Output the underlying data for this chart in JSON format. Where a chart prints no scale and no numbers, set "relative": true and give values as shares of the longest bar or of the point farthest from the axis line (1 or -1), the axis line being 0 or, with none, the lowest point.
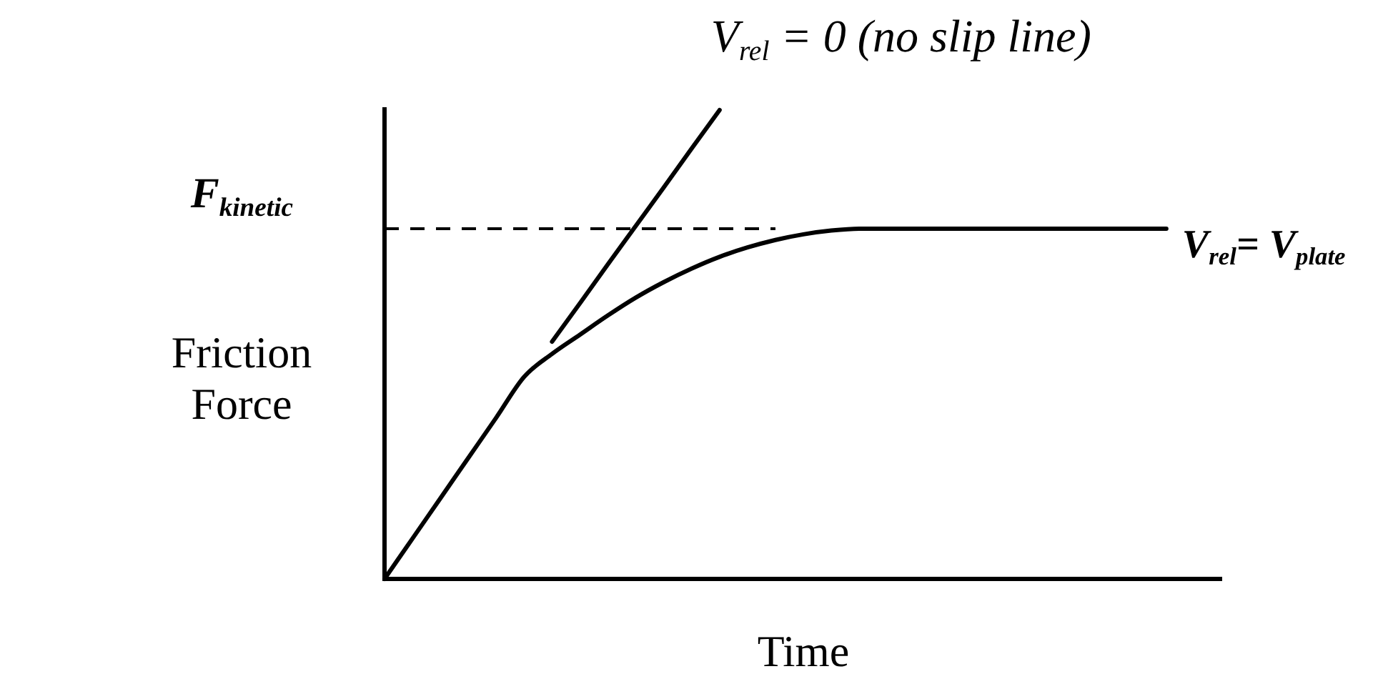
{
  "chart_data": {
    "type": "line",
    "relative": true,
    "xlabel": "Time",
    "ylabel": "Friction Force",
    "categories": [
      null,
      null,
      null,
      null,
      null,
      null,
      null,
      null,
      null,
      null,
      null,
      null,
      null,
      null,
      null,
      null,
      null,
      null,
      null,
      null,
      null,
      null,
      null,
      null,
      null,
      null,
      null,
      null,
      null,
      null,
      null
    ],
    "series": [
      {
        "name": "V$_{rel}$= V$_{plate}$",
        "color": "#000000",
        "values": [
          0,
          0.086,
          0.172,
          0.258,
          0.344,
          0.431,
          0.48,
          0.521,
          0.562,
          0.6,
          0.633,
          0.662,
          0.687,
          0.707,
          0.723,
          0.735,
          0.743,
          0.747,
          0.747,
          0.747,
          0.747,
          0.747,
          0.747,
          0.747,
          0.747,
          0.747,
          0.747,
          0.747,
          0.747,
          null,
          null
        ]
      },
      {
        "name": "V$_{rel}$ = 0 (no slip line)",
        "color": "#000000",
        "values": [
          null,
          null,
          null,
          null,
          null,
          null,
          0.506,
          0.588,
          0.671,
          0.753,
          0.835,
          0.918,
          1,
          null,
          null,
          null,
          null,
          null,
          null,
          null,
          null,
          null,
          null,
          null,
          null,
          null,
          null,
          null,
          null,
          null,
          null
        ]
      },
      {
        "name": "F$_{kinetic}$",
        "color": "#000000",
        "line_style": "dashed",
        "values": [
          0.747,
          0.747,
          0.747,
          0.747,
          0.747,
          0.747,
          0.747,
          0.747,
          0.747,
          0.747,
          0.747,
          0.747,
          0.747,
          0.747,
          0.747,
          null,
          null,
          null,
          null,
          null,
          null,
          null,
          null,
          null,
          null,
          null,
          null,
          null,
          null,
          null,
          null
        ]
      }
    ]
  }
}
